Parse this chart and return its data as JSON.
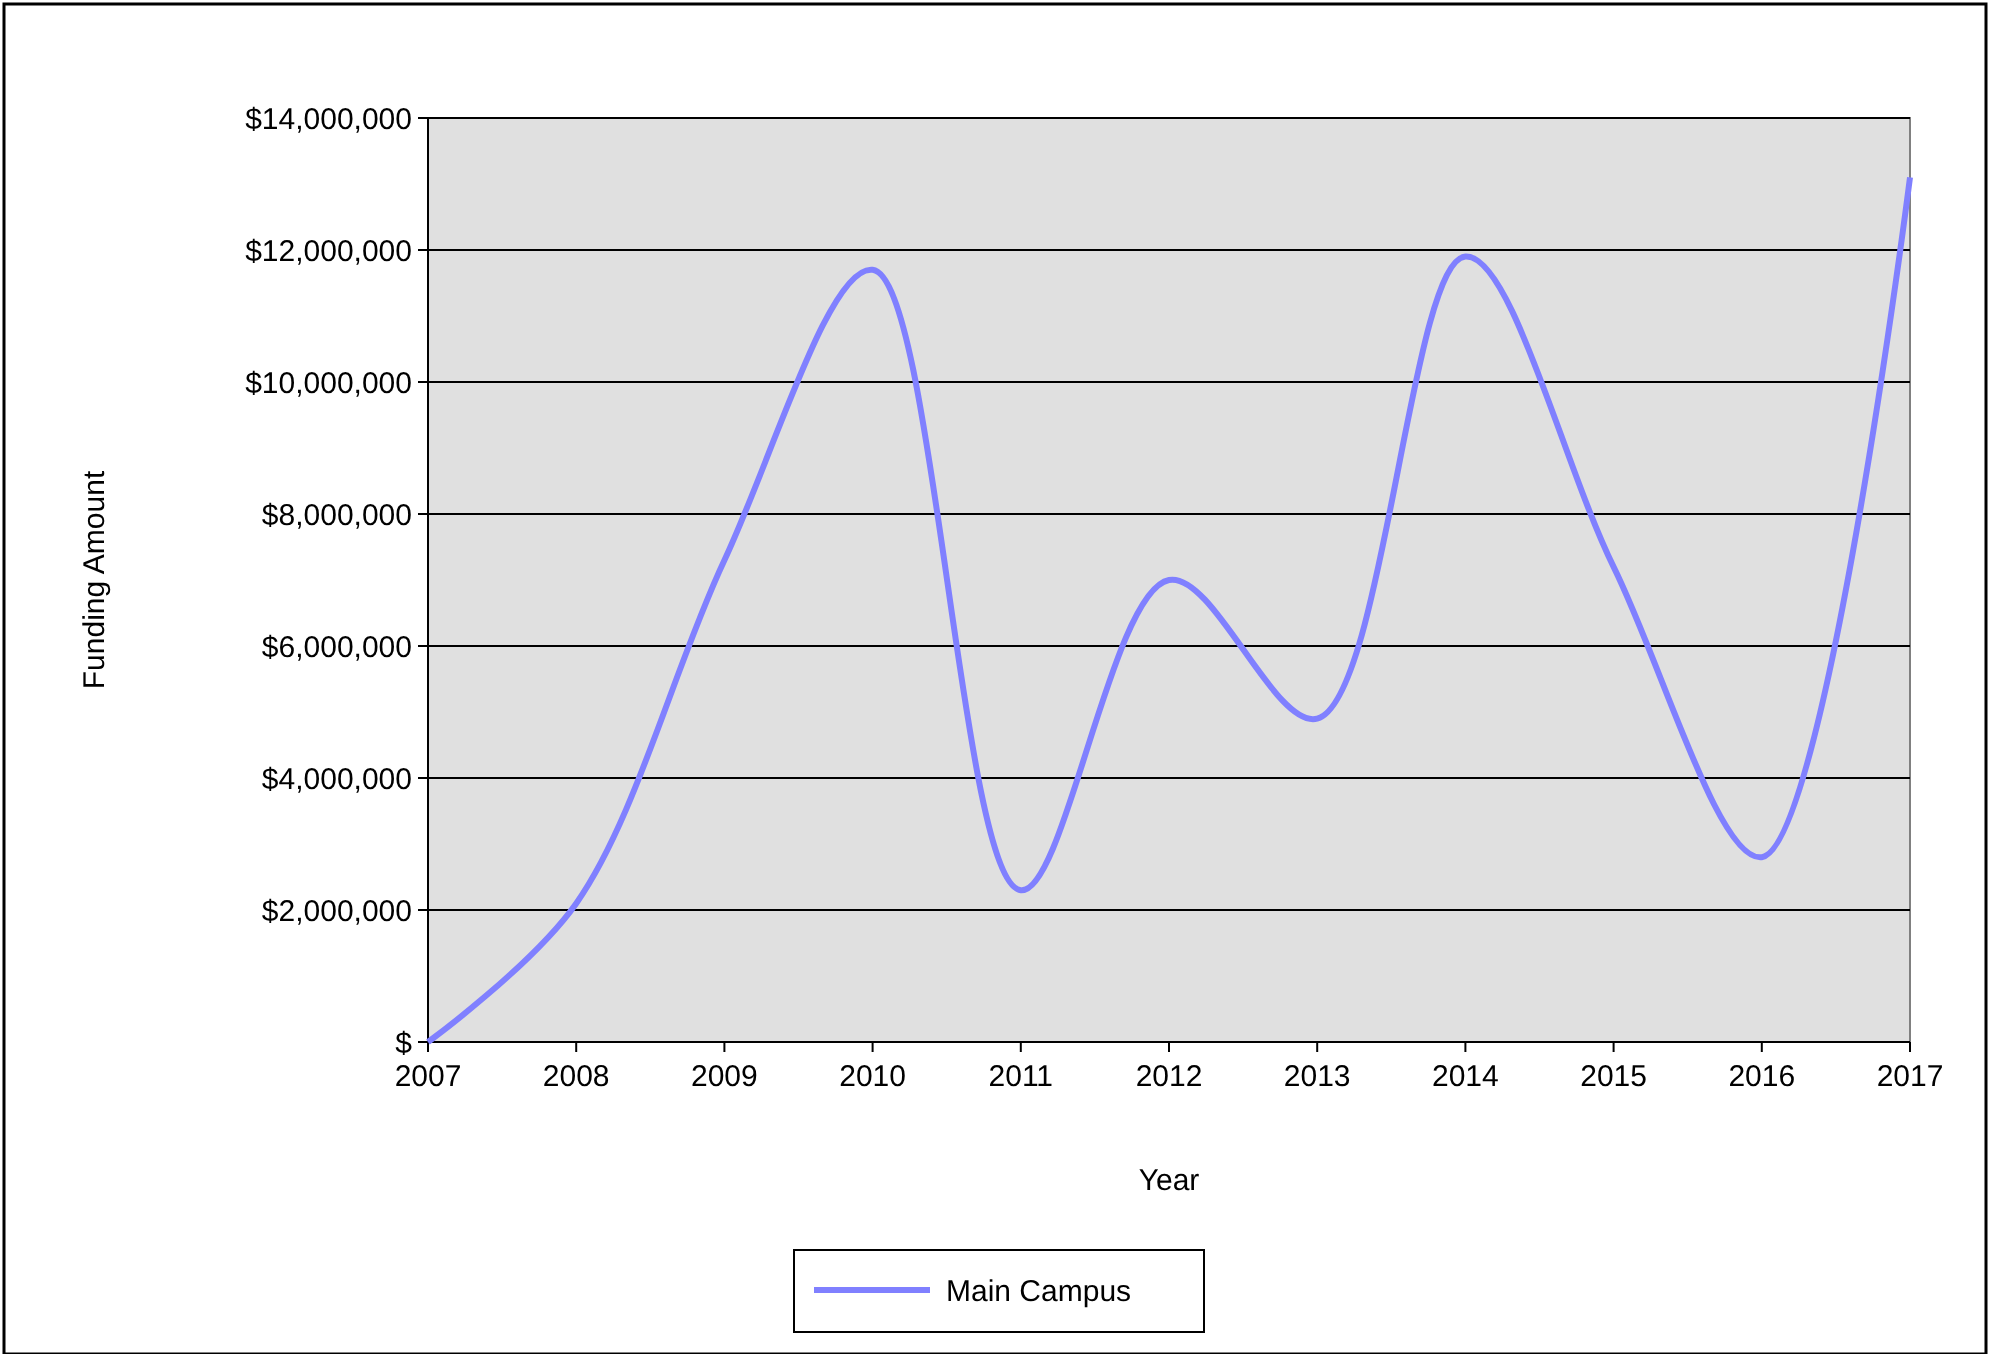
{
  "chart_data": {
    "type": "line",
    "xlabel": "Year",
    "ylabel": "Funding Amount",
    "x": [
      2007,
      2008,
      2009,
      2010,
      2011,
      2012,
      2013,
      2014,
      2015,
      2016,
      2017
    ],
    "series": [
      {
        "name": "Main Campus",
        "color": "#8080ff",
        "values": [
          0,
          2100000,
          7300000,
          11700000,
          2300000,
          7000000,
          4900000,
          11900000,
          7200000,
          2800000,
          13100000
        ]
      }
    ],
    "xlim": [
      2007,
      2017
    ],
    "xticks": [
      2007,
      2008,
      2009,
      2010,
      2011,
      2012,
      2013,
      2014,
      2015,
      2016,
      2017
    ],
    "ylim": [
      0,
      14000000
    ],
    "yticks": [
      {
        "value": 0,
        "label": "$"
      },
      {
        "value": 2000000,
        "label": "$2,000,000"
      },
      {
        "value": 4000000,
        "label": "$4,000,000"
      },
      {
        "value": 6000000,
        "label": "$6,000,000"
      },
      {
        "value": 8000000,
        "label": "$8,000,000"
      },
      {
        "value": 10000000,
        "label": "$10,000,000"
      },
      {
        "value": 12000000,
        "label": "$12,000,000"
      },
      {
        "value": 14000000,
        "label": "$14,000,000"
      }
    ],
    "grid": "y",
    "legend": "bottom",
    "marker": "none",
    "line_style": "solid"
  }
}
